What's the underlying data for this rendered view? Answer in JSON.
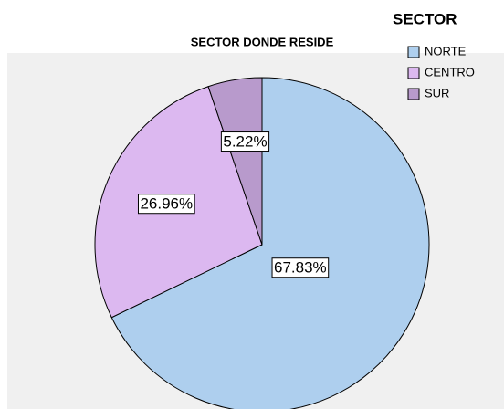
{
  "chart_data": {
    "type": "pie",
    "title": "SECTOR DONDE RESIDE",
    "legend_title": "SECTOR",
    "categories": [
      "NORTE",
      "CENTRO",
      "SUR"
    ],
    "values": [
      67.83,
      26.96,
      5.22
    ],
    "value_labels": [
      "67.83%",
      "26.96%",
      "5.22%"
    ],
    "colors": [
      "#aecfee",
      "#dcb8f0",
      "#b89acc"
    ],
    "legend": "top-right"
  }
}
